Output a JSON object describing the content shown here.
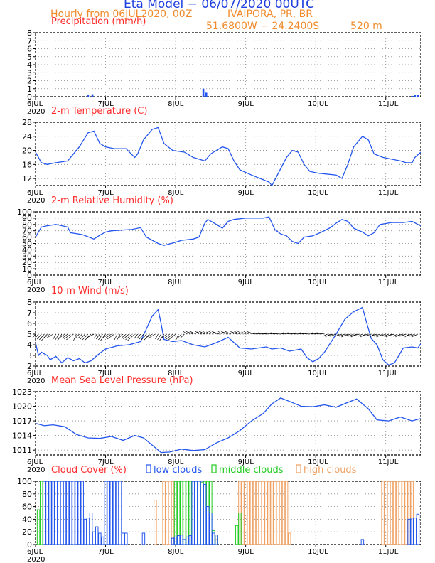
{
  "header": {
    "title": "Eta Model − 06/07/2020 00UTC",
    "subtitle": "Hourly from 06JUL2020, 00Z",
    "location": "IVAIPORA, PR, BR",
    "coords": "51.6800W − 24.2400S",
    "elevation": "520  m"
  },
  "colors": {
    "title": "#1f3fdf",
    "subtitle": "#f08a2a",
    "panel_title": "#ff2a2a",
    "series": "#2255ee",
    "wind_barb": "#000000",
    "grid": "#888888",
    "low": "#2255ee",
    "middle": "#22cc22",
    "high": "#f0a060"
  },
  "time_axis": {
    "hours_total": 132,
    "tick_labels": [
      "6JUL",
      "7JUL",
      "8JUL",
      "9JUL",
      "10JUL",
      "11JUL"
    ],
    "tick_hours": [
      0,
      24,
      48,
      72,
      96,
      120
    ],
    "year_label": "2020"
  },
  "chart_data": [
    {
      "type": "bar",
      "title": "Precipitation (mm/h)",
      "ylim": [
        0,
        8
      ],
      "yticks": [
        0,
        1,
        2,
        3,
        4,
        5,
        6,
        7,
        8
      ],
      "points": [
        [
          18,
          0.2
        ],
        [
          19.5,
          0.3
        ],
        [
          57.5,
          1.0
        ],
        [
          58.5,
          0.5
        ],
        [
          129,
          0.1
        ],
        [
          130,
          0.2
        ],
        [
          131,
          0.25
        ]
      ]
    },
    {
      "type": "line",
      "title": "2-m Temperature (C)",
      "ylim": [
        10,
        28
      ],
      "yticks": [
        12,
        16,
        20,
        24,
        28
      ],
      "points": [
        [
          0,
          19.5
        ],
        [
          2,
          16.5
        ],
        [
          4,
          16
        ],
        [
          7,
          16.5
        ],
        [
          11,
          17
        ],
        [
          15,
          21
        ],
        [
          18,
          25
        ],
        [
          20,
          25.5
        ],
        [
          22,
          22
        ],
        [
          24,
          21
        ],
        [
          27,
          20.5
        ],
        [
          31,
          20.5
        ],
        [
          34,
          18
        ],
        [
          35,
          19
        ],
        [
          37,
          23
        ],
        [
          40,
          26
        ],
        [
          42,
          26.5
        ],
        [
          44,
          22
        ],
        [
          47,
          20
        ],
        [
          51,
          19.5
        ],
        [
          54,
          18
        ],
        [
          58,
          17
        ],
        [
          60,
          19
        ],
        [
          62,
          20
        ],
        [
          64,
          21
        ],
        [
          66,
          20.5
        ],
        [
          68,
          17
        ],
        [
          70,
          14.5
        ],
        [
          74,
          13
        ],
        [
          80,
          11
        ],
        [
          81,
          10
        ],
        [
          86,
          18
        ],
        [
          88,
          20
        ],
        [
          90,
          19.5
        ],
        [
          92,
          16
        ],
        [
          94,
          14
        ],
        [
          97,
          13.5
        ],
        [
          103,
          13
        ],
        [
          105,
          12
        ],
        [
          107,
          16
        ],
        [
          109,
          21
        ],
        [
          112,
          24
        ],
        [
          114,
          23
        ],
        [
          116,
          19
        ],
        [
          119,
          18
        ],
        [
          122,
          17.5
        ],
        [
          125,
          17
        ],
        [
          127,
          16.5
        ],
        [
          129,
          16.5
        ],
        [
          130,
          18
        ],
        [
          132,
          19.5
        ]
      ]
    },
    {
      "type": "line",
      "title": "2-m Relative Humidity (%)",
      "ylim": [
        0,
        100
      ],
      "yticks": [
        0,
        10,
        20,
        30,
        40,
        50,
        60,
        70,
        80,
        90,
        100
      ],
      "points": [
        [
          0,
          60
        ],
        [
          2,
          76
        ],
        [
          4,
          78
        ],
        [
          7,
          80
        ],
        [
          11,
          76
        ],
        [
          12,
          67
        ],
        [
          16,
          64
        ],
        [
          20,
          57
        ],
        [
          22,
          63
        ],
        [
          24,
          68
        ],
        [
          26,
          70
        ],
        [
          29,
          71
        ],
        [
          33,
          72
        ],
        [
          36,
          75
        ],
        [
          38,
          60
        ],
        [
          42,
          50
        ],
        [
          44,
          47
        ],
        [
          48,
          52
        ],
        [
          50,
          55
        ],
        [
          54,
          57
        ],
        [
          56,
          60
        ],
        [
          58,
          82
        ],
        [
          59,
          88
        ],
        [
          62,
          80
        ],
        [
          64,
          74
        ],
        [
          66,
          85
        ],
        [
          68,
          88
        ],
        [
          72,
          90
        ],
        [
          78,
          90
        ],
        [
          80,
          92
        ],
        [
          82,
          72
        ],
        [
          84,
          65
        ],
        [
          86,
          62
        ],
        [
          88,
          53
        ],
        [
          90,
          50
        ],
        [
          92,
          60
        ],
        [
          95,
          62
        ],
        [
          98,
          68
        ],
        [
          101,
          75
        ],
        [
          103,
          82
        ],
        [
          105,
          88
        ],
        [
          107,
          85
        ],
        [
          109,
          74
        ],
        [
          112,
          68
        ],
        [
          114,
          62
        ],
        [
          116,
          67
        ],
        [
          118,
          80
        ],
        [
          122,
          83
        ],
        [
          126,
          83
        ],
        [
          129,
          85
        ],
        [
          131,
          80
        ],
        [
          132,
          78
        ]
      ]
    },
    {
      "type": "line",
      "title": "10-m Wind (m/s)",
      "ylim": [
        2,
        8
      ],
      "yticks": [
        2,
        3,
        4,
        5,
        6,
        7,
        8
      ],
      "wind_barbs": "u/v vectors drawn along the speed-5 baseline",
      "points": [
        [
          0,
          4.2
        ],
        [
          1,
          3.0
        ],
        [
          2,
          3.3
        ],
        [
          4,
          3.0
        ],
        [
          5,
          2.6
        ],
        [
          7,
          2.9
        ],
        [
          9,
          2.3
        ],
        [
          11,
          2.8
        ],
        [
          13,
          2.5
        ],
        [
          15,
          2.7
        ],
        [
          17,
          2.3
        ],
        [
          19,
          2.5
        ],
        [
          22,
          3.2
        ],
        [
          24,
          3.6
        ],
        [
          28,
          3.9
        ],
        [
          32,
          4.0
        ],
        [
          36,
          4.3
        ],
        [
          38,
          5.5
        ],
        [
          40,
          6.7
        ],
        [
          42,
          7.3
        ],
        [
          43,
          6.0
        ],
        [
          44,
          4.5
        ],
        [
          47,
          4.3
        ],
        [
          50,
          4.4
        ],
        [
          54,
          4.0
        ],
        [
          58,
          3.8
        ],
        [
          62,
          4.2
        ],
        [
          66,
          4.7
        ],
        [
          70,
          3.7
        ],
        [
          74,
          3.6
        ],
        [
          79,
          3.8
        ],
        [
          81,
          3.6
        ],
        [
          84,
          3.7
        ],
        [
          87,
          3.4
        ],
        [
          91,
          3.6
        ],
        [
          93,
          2.8
        ],
        [
          95,
          2.4
        ],
        [
          97,
          2.7
        ],
        [
          99,
          3.3
        ],
        [
          103,
          5.0
        ],
        [
          106,
          6.4
        ],
        [
          109,
          7.1
        ],
        [
          112,
          7.5
        ],
        [
          113,
          6.5
        ],
        [
          115,
          4.6
        ],
        [
          117,
          4.0
        ],
        [
          119,
          2.6
        ],
        [
          121,
          2.1
        ],
        [
          123,
          2.3
        ],
        [
          126,
          3.7
        ],
        [
          129,
          3.8
        ],
        [
          131,
          3.7
        ],
        [
          132,
          4.1
        ]
      ]
    },
    {
      "type": "line",
      "title": "Mean Sea Level Pressure (hPa)",
      "ylim": [
        1010,
        1023
      ],
      "yticks": [
        1011,
        1014,
        1017,
        1020,
        1023
      ],
      "points": [
        [
          0,
          1016.5
        ],
        [
          3,
          1016
        ],
        [
          6,
          1016.2
        ],
        [
          10,
          1015.8
        ],
        [
          14,
          1014.2
        ],
        [
          18,
          1013.5
        ],
        [
          22,
          1013.4
        ],
        [
          26,
          1013.8
        ],
        [
          30,
          1013
        ],
        [
          34,
          1014
        ],
        [
          37,
          1013.5
        ],
        [
          40,
          1012
        ],
        [
          43,
          1010.5
        ],
        [
          46,
          1010.6
        ],
        [
          50,
          1011.2
        ],
        [
          54,
          1010.9
        ],
        [
          58,
          1011.1
        ],
        [
          62,
          1012.5
        ],
        [
          66,
          1013.5
        ],
        [
          70,
          1015
        ],
        [
          74,
          1017
        ],
        [
          78,
          1018.5
        ],
        [
          81,
          1020.5
        ],
        [
          84,
          1021.7
        ],
        [
          87,
          1021
        ],
        [
          91,
          1020
        ],
        [
          95,
          1019.9
        ],
        [
          99,
          1020.3
        ],
        [
          103,
          1019.8
        ],
        [
          107,
          1020.8
        ],
        [
          110,
          1021.5
        ],
        [
          114,
          1019.5
        ],
        [
          117,
          1017.2
        ],
        [
          121,
          1017
        ],
        [
          125,
          1017.8
        ],
        [
          129,
          1017
        ],
        [
          132,
          1017.5
        ]
      ]
    },
    {
      "type": "bar",
      "title": "Cloud Cover (%)",
      "ylim": [
        0,
        100
      ],
      "yticks": [
        0,
        20,
        40,
        60,
        80,
        100
      ],
      "legend": [
        "low clouds",
        "middle clouds",
        "high clouds"
      ],
      "series": [
        {
          "name": "low clouds",
          "points": [
            [
              3,
              100
            ],
            [
              4,
              100
            ],
            [
              5,
              100
            ],
            [
              6,
              100
            ],
            [
              7,
              100
            ],
            [
              8,
              100
            ],
            [
              9,
              100
            ],
            [
              10,
              100
            ],
            [
              11,
              100
            ],
            [
              12,
              100
            ],
            [
              13,
              100
            ],
            [
              14,
              100
            ],
            [
              15,
              100
            ],
            [
              16,
              100
            ],
            [
              17,
              40
            ],
            [
              18,
              42
            ],
            [
              19,
              50
            ],
            [
              20,
              20
            ],
            [
              21,
              28
            ],
            [
              22,
              18
            ],
            [
              23,
              12
            ],
            [
              24,
              100
            ],
            [
              25,
              100
            ],
            [
              26,
              100
            ],
            [
              27,
              100
            ],
            [
              28,
              100
            ],
            [
              29,
              100
            ],
            [
              30,
              18
            ],
            [
              31,
              18
            ],
            [
              37,
              18
            ],
            [
              47,
              10
            ],
            [
              48,
              12
            ],
            [
              49,
              14
            ],
            [
              50,
              15
            ],
            [
              51,
              8
            ],
            [
              52,
              12
            ],
            [
              53,
              14
            ],
            [
              54,
              100
            ],
            [
              55,
              100
            ],
            [
              56,
              100
            ],
            [
              57,
              100
            ],
            [
              58,
              95
            ],
            [
              59,
              60
            ],
            [
              60,
              50
            ],
            [
              61,
              18
            ],
            [
              62,
              15
            ],
            [
              112,
              8
            ],
            [
              128,
              40
            ],
            [
              129,
              42
            ],
            [
              130,
              42
            ],
            [
              131,
              48
            ]
          ]
        },
        {
          "name": "middle clouds",
          "points": [
            [
              1,
              55
            ],
            [
              2,
              100
            ],
            [
              48,
              100
            ],
            [
              49,
              100
            ],
            [
              50,
              100
            ],
            [
              51,
              100
            ],
            [
              52,
              100
            ],
            [
              53,
              100
            ],
            [
              54,
              100
            ],
            [
              55,
              100
            ],
            [
              56,
              100
            ],
            [
              57,
              98
            ],
            [
              58,
              100
            ],
            [
              59,
              100
            ],
            [
              60,
              100
            ],
            [
              61,
              22
            ],
            [
              62,
              12
            ],
            [
              69,
              30
            ],
            [
              70,
              50
            ]
          ]
        },
        {
          "name": "high clouds",
          "points": [
            [
              41,
              70
            ],
            [
              44,
              100
            ],
            [
              45,
              100
            ],
            [
              46,
              100
            ],
            [
              47,
              100
            ],
            [
              62,
              8
            ],
            [
              70,
              100
            ],
            [
              71,
              100
            ],
            [
              72,
              100
            ],
            [
              73,
              100
            ],
            [
              74,
              100
            ],
            [
              75,
              100
            ],
            [
              76,
              100
            ],
            [
              77,
              100
            ],
            [
              78,
              100
            ],
            [
              79,
              100
            ],
            [
              80,
              100
            ],
            [
              81,
              100
            ],
            [
              82,
              100
            ],
            [
              83,
              100
            ],
            [
              84,
              100
            ],
            [
              85,
              100
            ],
            [
              86,
              100
            ],
            [
              87,
              18
            ],
            [
              119,
              100
            ],
            [
              120,
              100
            ],
            [
              121,
              100
            ],
            [
              122,
              100
            ],
            [
              123,
              100
            ],
            [
              124,
              100
            ],
            [
              125,
              100
            ],
            [
              126,
              100
            ],
            [
              127,
              100
            ],
            [
              128,
              100
            ],
            [
              129,
              100
            ]
          ]
        }
      ]
    }
  ]
}
